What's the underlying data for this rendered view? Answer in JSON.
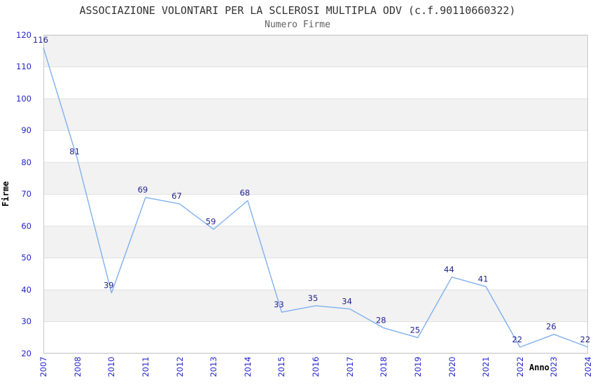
{
  "chart_data": {
    "type": "line",
    "title": "ASSOCIAZIONE VOLONTARI PER LA SCLEROSI MULTIPLA ODV (c.f.90110660322)",
    "subtitle": "Numero Firme",
    "xlabel": "Anno",
    "ylabel": "Firme",
    "categories": [
      "2007",
      "2008",
      "2010",
      "2011",
      "2012",
      "2013",
      "2014",
      "2015",
      "2016",
      "2017",
      "2018",
      "2019",
      "2020",
      "2021",
      "2022",
      "2023",
      "2024"
    ],
    "values": [
      116,
      81,
      39,
      69,
      67,
      59,
      68,
      33,
      35,
      34,
      28,
      25,
      44,
      41,
      22,
      26,
      22
    ],
    "ylim": [
      20,
      120
    ],
    "ytick_step": 10,
    "grid": "horizontal-bands-alternating",
    "legend_position": "none",
    "colors": {
      "line": "#7fb0ef",
      "data_label": "#23238e",
      "tick_label": "#2323cd",
      "band_gray": "#f2f2f2",
      "band_white": "#ffffff",
      "gridline": "#e0e0e0",
      "plot_border": "#c9c9c9",
      "title": "#333333",
      "subtitle": "#5f5f5f",
      "axis_title": "#000000"
    }
  }
}
